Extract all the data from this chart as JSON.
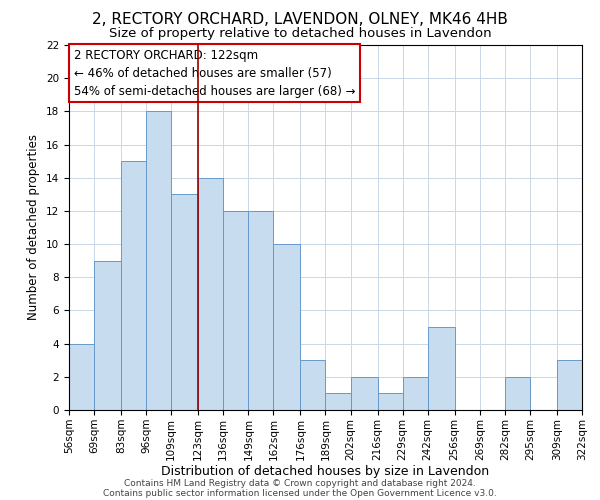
{
  "title": "2, RECTORY ORCHARD, LAVENDON, OLNEY, MK46 4HB",
  "subtitle": "Size of property relative to detached houses in Lavendon",
  "xlabel": "Distribution of detached houses by size in Lavendon",
  "ylabel": "Number of detached properties",
  "bin_edges": [
    56,
    69,
    83,
    96,
    109,
    123,
    136,
    149,
    162,
    176,
    189,
    202,
    216,
    229,
    242,
    256,
    269,
    282,
    295,
    309,
    322
  ],
  "bar_heights": [
    4,
    9,
    15,
    18,
    13,
    14,
    12,
    12,
    10,
    3,
    1,
    2,
    1,
    2,
    5,
    0,
    0,
    2,
    0,
    3
  ],
  "bar_color": "#C8DCF0",
  "bar_edge_color": "#6699CC",
  "vline_x": 123,
  "vline_color": "#990000",
  "ylim": [
    0,
    22
  ],
  "yticks": [
    0,
    2,
    4,
    6,
    8,
    10,
    12,
    14,
    16,
    18,
    20,
    22
  ],
  "annotation_text": "2 RECTORY ORCHARD: 122sqm\n← 46% of detached houses are smaller (57)\n54% of semi-detached houses are larger (68) →",
  "annotation_box_color": "#FFFFFF",
  "annotation_box_edge": "#CC0000",
  "footer_line1": "Contains HM Land Registry data © Crown copyright and database right 2024.",
  "footer_line2": "Contains public sector information licensed under the Open Government Licence v3.0.",
  "title_fontsize": 11,
  "subtitle_fontsize": 9.5,
  "xlabel_fontsize": 9,
  "ylabel_fontsize": 8.5,
  "tick_label_fontsize": 7.5,
  "footer_fontsize": 6.5,
  "annotation_fontsize": 8.5
}
